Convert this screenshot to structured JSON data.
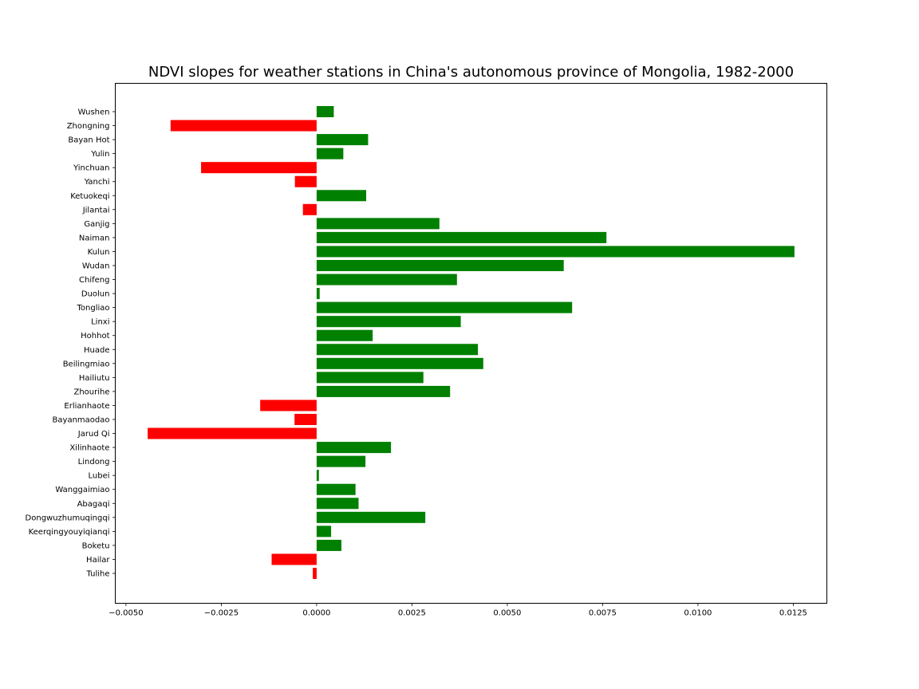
{
  "chart_data": {
    "type": "bar",
    "orientation": "horizontal",
    "title": "NDVI slopes for weather stations in China's autonomous province of Mongolia, 1982-2000",
    "xlabel": "",
    "ylabel": "",
    "xlim": [
      -0.00528,
      0.01338
    ],
    "grid": false,
    "legend": "none",
    "colors": {
      "positive": "#008000",
      "negative": "#ff0000"
    },
    "x_ticks": [
      -0.005,
      -0.0025,
      0.0,
      0.0025,
      0.005,
      0.0075,
      0.01,
      0.0125
    ],
    "x_tick_labels": [
      "−0.0050",
      "−0.0025",
      "0.0000",
      "0.0025",
      "0.0050",
      "0.0075",
      "0.0100",
      "0.0125"
    ],
    "categories": [
      "Tulihe",
      "Hailar",
      "Boketu",
      "Keerqingyouyiqianqi",
      "Dongwuzhumuqingqi",
      "Abagaqi",
      "Wanggaimiao",
      "Lubei",
      "Lindong",
      "Xilinhaote",
      "Jarud Qi",
      "Bayanmaodao",
      "Erlianhaote",
      "Zhourihe",
      "Hailiutu",
      "Beilingmiao",
      "Huade",
      "Hohhot",
      "Linxi",
      "Tongliao",
      "Duolun",
      "Chifeng",
      "Wudan",
      "Kulun",
      "Naiman",
      "Ganjig",
      "Jilantai",
      "Ketuokeqi",
      "Yanchi",
      "Yinchuan",
      "Yulin",
      "Bayan Hot",
      "Zhongning",
      "Wushen"
    ],
    "values": [
      -0.0001,
      -0.00118,
      0.00065,
      0.00038,
      0.00285,
      0.0011,
      0.00102,
      6e-05,
      0.00128,
      0.00195,
      -0.00443,
      -0.00058,
      -0.00148,
      0.0035,
      0.0028,
      0.00437,
      0.00423,
      0.00147,
      0.00378,
      0.0067,
      8e-05,
      0.00368,
      0.00648,
      0.01253,
      0.0076,
      0.00322,
      -0.00036,
      0.0013,
      -0.00057,
      -0.00303,
      0.0007,
      0.00135,
      -0.00383,
      0.00045
    ]
  }
}
